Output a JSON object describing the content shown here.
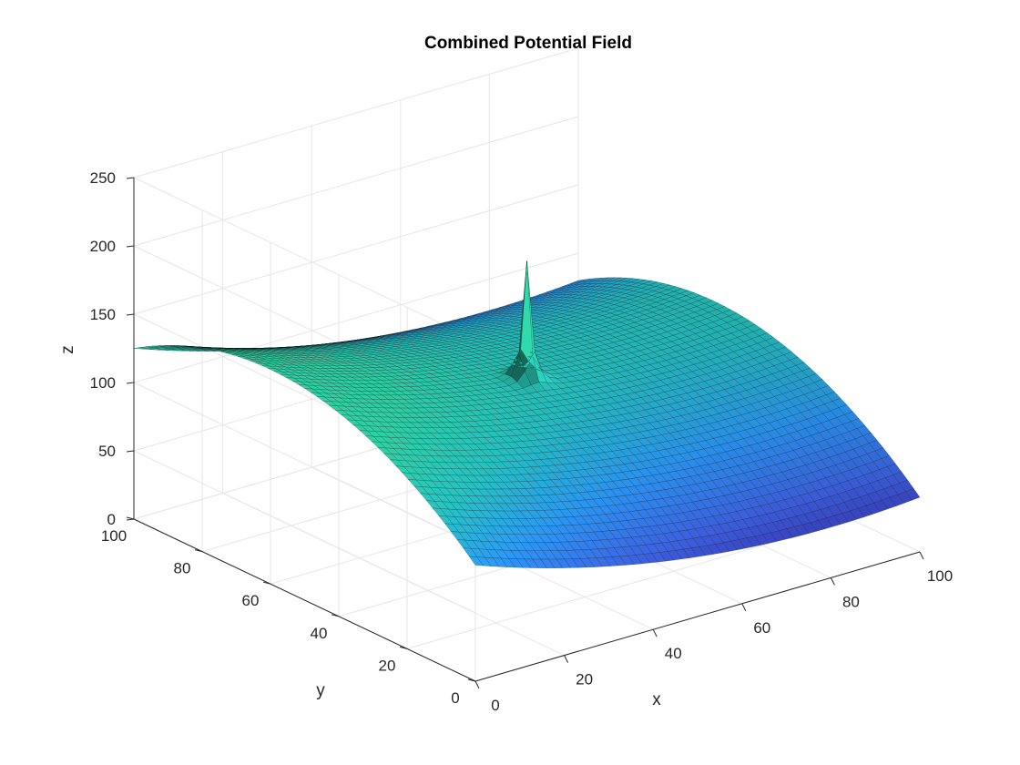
{
  "figure": {
    "title": "Combined Potential Field"
  },
  "chart_data": {
    "type": "surface",
    "title": "Combined Potential Field",
    "xlabel": "x",
    "ylabel": "y",
    "zlabel": "z",
    "xlim": [
      0,
      100
    ],
    "ylim": [
      0,
      100
    ],
    "zlim": [
      0,
      250
    ],
    "xticks": [
      0,
      20,
      40,
      60,
      80,
      100
    ],
    "yticks": [
      0,
      20,
      40,
      60,
      80,
      100
    ],
    "zticks": [
      0,
      50,
      100,
      150,
      200,
      250
    ],
    "grid": true,
    "colormap": "parula-like (dark blue to teal)",
    "surface": {
      "grid_min": 0,
      "grid_max": 100,
      "attractive_min_at": [
        80,
        60
      ],
      "corner_values": [
        {
          "x": 0,
          "y": 0,
          "z": 85
        },
        {
          "x": 100,
          "y": 0,
          "z": 40
        },
        {
          "x": 0,
          "y": 100,
          "z": 125
        },
        {
          "x": 100,
          "y": 100,
          "z": 80
        }
      ],
      "repulsive_peak": {
        "x": 50,
        "y": 50,
        "z": 205
      }
    },
    "colors": {
      "low": "#100a5a",
      "mid": "#3a5cd6",
      "high": "#2bbba6",
      "edge": "#000000",
      "grid": "#e6e6e6",
      "axis": "#262626"
    }
  }
}
